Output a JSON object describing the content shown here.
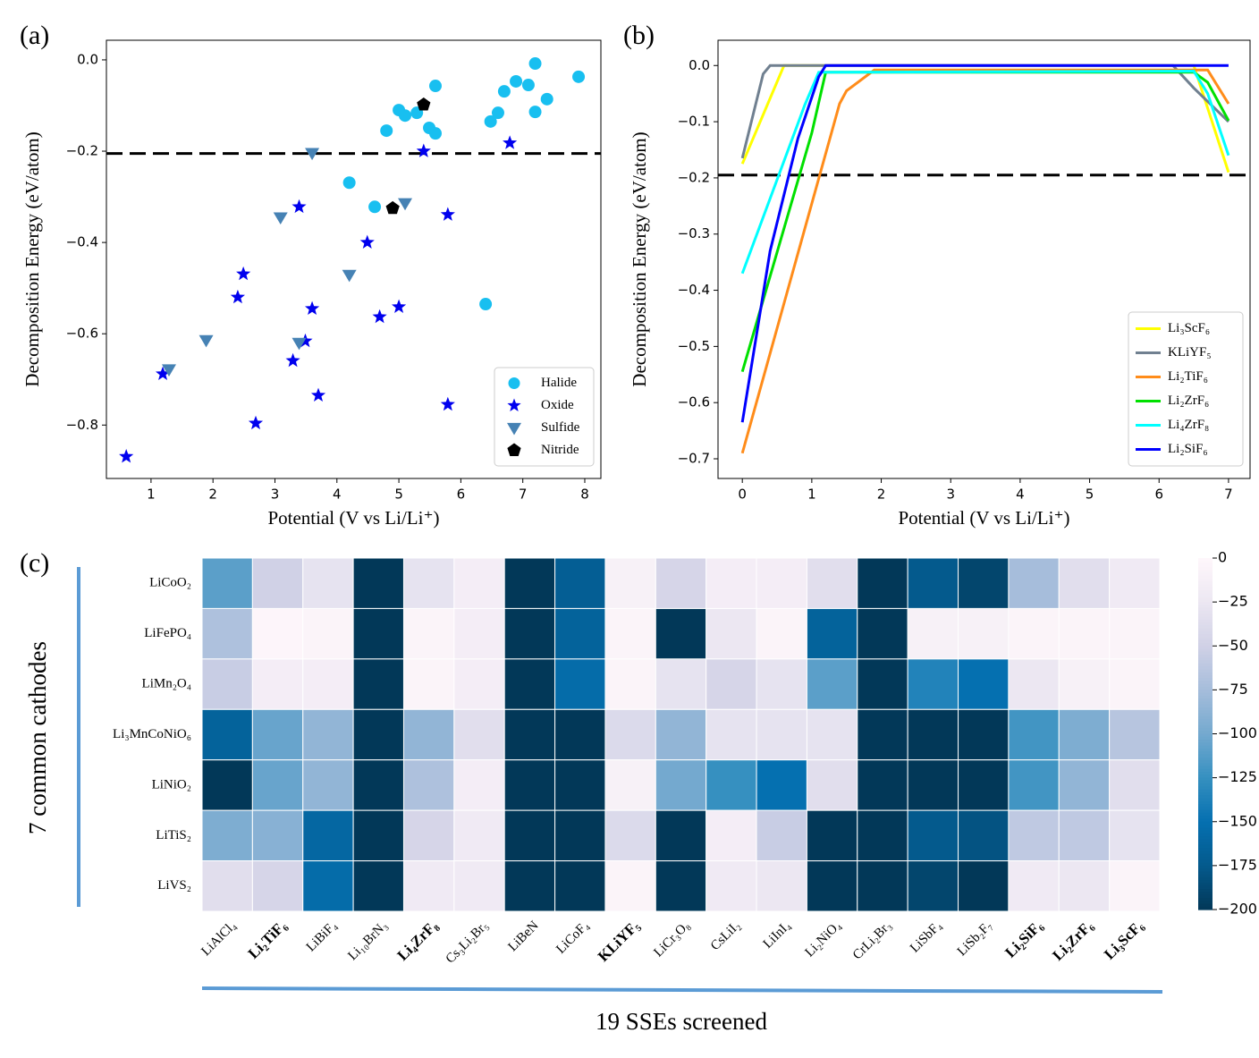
{
  "chart_data": [
    {
      "type": "scatter",
      "label": "(a)",
      "xlabel": "Potential (V vs Li/Li⁺)",
      "ylabel": "Decomposition Energy (eV/atom)",
      "xlim": [
        0.28,
        8.26
      ],
      "ylim": [
        -0.917,
        0.043
      ],
      "xticks": [
        1,
        2,
        3,
        4,
        5,
        6,
        7,
        8
      ],
      "yticks": [
        {
          "value": 0,
          "label": "0.0"
        },
        {
          "value": -0.2,
          "label": "−0.2"
        },
        {
          "value": -0.4,
          "label": "−0.4"
        },
        {
          "value": -0.6,
          "label": "−0.6"
        },
        {
          "value": -0.8,
          "label": "−0.8"
        }
      ],
      "hline": -0.205,
      "legend": "lower right",
      "series": [
        {
          "name": "Halide",
          "color": "#18bff0",
          "marker": "circle",
          "x": [
            4.2,
            4.61,
            4.8,
            5.0,
            5.1,
            5.29,
            5.49,
            5.59,
            5.59,
            6.4,
            6.48,
            6.6,
            6.7,
            6.89,
            7.09,
            7.2,
            7.2,
            7.39,
            7.9
          ],
          "values": [
            -0.269,
            -0.322,
            -0.155,
            -0.11,
            -0.122,
            -0.116,
            -0.149,
            -0.057,
            -0.161,
            -0.535,
            -0.135,
            -0.116,
            -0.069,
            -0.047,
            -0.055,
            -0.008,
            -0.114,
            -0.086,
            -0.037
          ]
        },
        {
          "name": "Oxide",
          "color": "#0000ee",
          "marker": "star",
          "x": [
            0.6,
            1.19,
            2.4,
            2.49,
            2.69,
            3.29,
            3.39,
            3.49,
            3.6,
            3.7,
            4.49,
            4.69,
            5.0,
            5.4,
            5.79,
            5.79,
            6.79
          ],
          "values": [
            -0.869,
            -0.688,
            -0.52,
            -0.469,
            -0.796,
            -0.659,
            -0.322,
            -0.616,
            -0.545,
            -0.735,
            -0.4,
            -0.563,
            -0.541,
            -0.2,
            -0.339,
            -0.755,
            -0.182
          ]
        },
        {
          "name": "Sulfide",
          "color": "#4682b4",
          "marker": "triangle",
          "x": [
            1.29,
            1.89,
            3.09,
            3.39,
            3.6,
            4.2,
            5.1
          ],
          "values": [
            -0.678,
            -0.614,
            -0.345,
            -0.62,
            -0.204,
            -0.471,
            -0.314
          ]
        },
        {
          "name": "Nitride",
          "color": "#000000",
          "marker": "pentagon",
          "x": [
            4.9,
            5.4
          ],
          "values": [
            -0.325,
            -0.098
          ]
        }
      ]
    },
    {
      "type": "line",
      "label": "(b)",
      "xlabel": "Potential (V vs Li/Li⁺)",
      "ylabel": "Decomposition Energy (eV/atom)",
      "xlim": [
        -0.35,
        7.31
      ],
      "ylim": [
        -0.735,
        0.045
      ],
      "xticks": [
        0,
        1,
        2,
        3,
        4,
        5,
        6,
        7
      ],
      "yticks": [
        {
          "value": 0,
          "label": "0.0"
        },
        {
          "value": -0.1,
          "label": "−0.1"
        },
        {
          "value": -0.2,
          "label": "−0.2"
        },
        {
          "value": -0.3,
          "label": "−0.3"
        },
        {
          "value": -0.4,
          "label": "−0.4"
        },
        {
          "value": -0.5,
          "label": "−0.5"
        },
        {
          "value": -0.6,
          "label": "−0.6"
        },
        {
          "value": -0.7,
          "label": "−0.7"
        }
      ],
      "hline": -0.195,
      "legend": "lower right",
      "series": [
        {
          "name": "Li₃ScF₆",
          "color": "#ffff00",
          "x": [
            0,
            0.6,
            6.5,
            7
          ],
          "values": [
            -0.175,
            0,
            0,
            -0.19
          ]
        },
        {
          "name": "KLiYF₅",
          "color": "#708090",
          "x": [
            0,
            0.3,
            0.4,
            6.2,
            6.5,
            7
          ],
          "values": [
            -0.165,
            -0.015,
            0,
            0,
            -0.04,
            -0.1
          ]
        },
        {
          "name": "Li₂TiF₆",
          "color": "#ff8c1a",
          "x": [
            0,
            1.4,
            1.5,
            1.9,
            6.7,
            7
          ],
          "values": [
            -0.69,
            -0.068,
            -0.045,
            -0.008,
            -0.008,
            -0.068
          ]
        },
        {
          "name": "Li₂ZrF₆",
          "color": "#00e000",
          "x": [
            0,
            1.0,
            1.2,
            6.5,
            6.7,
            7
          ],
          "values": [
            -0.545,
            -0.12,
            -0.012,
            -0.012,
            -0.03,
            -0.098
          ]
        },
        {
          "name": "Li₄ZrF₈",
          "color": "#00ffff",
          "x": [
            0,
            0.9,
            1.1,
            6.5,
            6.7,
            7
          ],
          "values": [
            -0.37,
            -0.07,
            -0.012,
            -0.01,
            -0.05,
            -0.16
          ]
        },
        {
          "name": "Li₂SiF₆",
          "color": "#0000ff",
          "x": [
            0,
            0.4,
            0.8,
            1.1,
            1.2,
            7
          ],
          "values": [
            -0.635,
            -0.33,
            -0.13,
            -0.02,
            0,
            0
          ]
        }
      ]
    },
    {
      "type": "heatmap",
      "label": "(c)",
      "xlabel": "19 SSEs screened",
      "ylabel": "7 common cathodes",
      "colormap": "PuBu_r",
      "x_categories": [
        "LiAlCl₄",
        "Li₂TiF₆",
        "LiBiF₄",
        "Li₁₀BrN₃",
        "Li₄ZrF₈",
        "Cs₃Li₂Br₅",
        "LiBeN",
        "LiCoF₄",
        "KLiYF₅",
        "LiCr₃O₈",
        "CsLiI₂",
        "LiInI₄",
        "Li₂NiO₄",
        "CrLi₂Br₃",
        "LiSbF₄",
        "LiSb₂F₇",
        "Li₂SiF₆",
        "Li₂ZrF₆",
        "Li₃ScF₆"
      ],
      "bold": [
        false,
        true,
        false,
        false,
        true,
        false,
        false,
        false,
        true,
        false,
        false,
        false,
        false,
        false,
        false,
        false,
        true,
        true,
        true
      ],
      "y_categories": [
        "LiCoO₂",
        "LiFePO₄",
        "LiMn₂O₄",
        "Li₃MnCoNiO₆",
        "LiNiO₂",
        "LiTiS₂",
        "LiVS₂"
      ],
      "zlim": [
        -200,
        0
      ],
      "zticks": [
        0,
        {
          "value": -25,
          "label": "−25"
        },
        {
          "value": -50,
          "label": "−50"
        },
        {
          "value": -75,
          "label": "−75"
        },
        {
          "value": -100,
          "label": "−100"
        },
        {
          "value": -125,
          "label": "−125"
        },
        {
          "value": -150,
          "label": "−150"
        },
        {
          "value": -175,
          "label": "−175"
        },
        {
          "value": -200,
          "label": "−200"
        }
      ],
      "values": [
        [
          -110,
          -50,
          -30,
          -200,
          -30,
          -15,
          -200,
          -170,
          -10,
          -45,
          -15,
          -15,
          -35,
          -200,
          -175,
          -190,
          -75,
          -35,
          -20
        ],
        [
          -70,
          -3,
          -5,
          -200,
          -5,
          -15,
          -200,
          -165,
          -5,
          -200,
          -25,
          -5,
          -165,
          -200,
          -10,
          -10,
          -5,
          -5,
          -5
        ],
        [
          -55,
          -15,
          -15,
          -200,
          -5,
          -15,
          -200,
          -155,
          -5,
          -30,
          -45,
          -30,
          -110,
          -200,
          -135,
          -150,
          -25,
          -10,
          -5
        ],
        [
          -165,
          -105,
          -85,
          -200,
          -85,
          -35,
          -200,
          -200,
          -40,
          -85,
          -30,
          -30,
          -30,
          -200,
          -200,
          -200,
          -120,
          -95,
          -65
        ],
        [
          -200,
          -105,
          -85,
          -200,
          -70,
          -15,
          -200,
          -200,
          -10,
          -100,
          -125,
          -150,
          -35,
          -200,
          -200,
          -200,
          -120,
          -85,
          -35
        ],
        [
          -95,
          -90,
          -160,
          -200,
          -45,
          -20,
          -200,
          -200,
          -40,
          -200,
          -15,
          -55,
          -200,
          -200,
          -175,
          -180,
          -60,
          -60,
          -30
        ],
        [
          -35,
          -45,
          -155,
          -200,
          -20,
          -20,
          -200,
          -200,
          -5,
          -200,
          -20,
          -25,
          -200,
          -200,
          -190,
          -200,
          -20,
          -25,
          -5
        ]
      ]
    }
  ]
}
